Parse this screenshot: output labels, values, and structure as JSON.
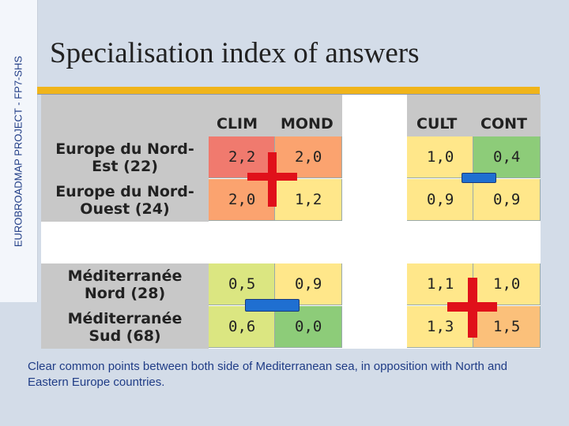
{
  "sidebar": {
    "label": "EUROBROADMAP PROJECT - FP7-SHS"
  },
  "slide": {
    "title": "Specialisation index of answers"
  },
  "table": {
    "columns": [
      "CLIM",
      "MOND",
      "CULT",
      "CONT"
    ],
    "rows": [
      {
        "label": "Europe du Nord-\nEst (22)",
        "values": [
          "2,2",
          "2,0",
          "1,0",
          "0,4"
        ]
      },
      {
        "label": "Europe du Nord-\nOuest (24)",
        "values": [
          "2,0",
          "1,2",
          "0,9",
          "0,9"
        ]
      },
      {
        "label": "Méditerranée\nNord (28)",
        "values": [
          "0,5",
          "0,9",
          "1,1",
          "1,0"
        ]
      },
      {
        "label": "Méditerranée\nSud (68)",
        "values": [
          "0,6",
          "0,0",
          "1,3",
          "1,5"
        ]
      }
    ]
  },
  "colors": {
    "high": "#f07a6e",
    "mid_high": "#fba36f",
    "neutral": "#ffe78a",
    "mid_low": "#dbe681",
    "low": "#8dcc79",
    "plus_marker": "#e0101a",
    "minus_marker": "#1f6fd1"
  },
  "caption": "Clear common points between both side of Mediterranean sea, in opposition with North and Eastern Europe countries."
}
